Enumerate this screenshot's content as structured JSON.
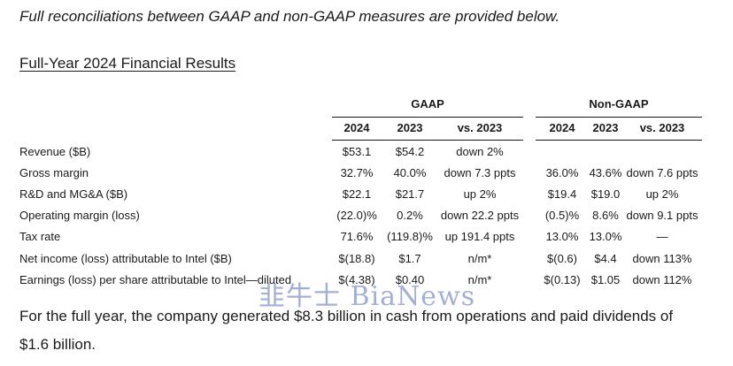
{
  "intro": "Full reconciliations between GAAP and non-GAAP measures are provided below.",
  "section_title": "Full-Year 2024 Financial Results",
  "groups": {
    "gaap": "GAAP",
    "non_gaap": "Non-GAAP"
  },
  "columns": [
    "2024",
    "2023",
    "vs. 2023",
    "2024",
    "2023",
    "vs. 2023"
  ],
  "rows": [
    {
      "label": "Revenue ($B)",
      "cells": [
        "$53.1",
        "$54.2",
        "down 2%",
        "",
        "",
        ""
      ]
    },
    {
      "label": "Gross margin",
      "cells": [
        "32.7%",
        "40.0%",
        "down 7.3 ppts",
        "36.0%",
        "43.6%",
        "down 7.6 ppts"
      ]
    },
    {
      "label": "R&D and MG&A ($B)",
      "cells": [
        "$22.1",
        "$21.7",
        "up 2%",
        "$19.4",
        "$19.0",
        "up 2%"
      ]
    },
    {
      "label": "Operating margin (loss)",
      "cells": [
        "(22.0)%",
        "0.2%",
        "down 22.2 ppts",
        "(0.5)%",
        "8.6%",
        "down 9.1 ppts"
      ]
    },
    {
      "label": "Tax rate",
      "cells": [
        "71.6%",
        "(119.8)%",
        "up 191.4 ppts",
        "13.0%",
        "13.0%",
        "—"
      ]
    },
    {
      "label": "Net income (loss) attributable to Intel ($B)",
      "cells": [
        "$(18.8)",
        "$1.7",
        "n/m*",
        "$(0.6)",
        "$4.4",
        "down 113%"
      ]
    },
    {
      "label": "Earnings (loss) per share attributable to Intel—diluted",
      "cells": [
        "$(4.38)",
        "$0.40",
        "n/m*",
        "$(0.13)",
        "$1.05",
        "down 112%"
      ]
    }
  ],
  "closing": "For the full year, the company generated $8.3 billion in cash from operations and paid dividends of $1.6 billion.",
  "watermark": "韭牛士 BiaNews"
}
